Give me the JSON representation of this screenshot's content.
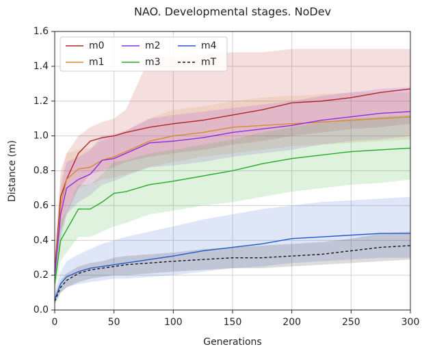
{
  "chart_data": {
    "type": "line",
    "title": "NAO. Developmental stages. NoDev",
    "x_label": "Generations",
    "y_label": "Distance (m)",
    "x": [
      0,
      5,
      10,
      20,
      30,
      40,
      50,
      60,
      80,
      100,
      125,
      150,
      175,
      200,
      225,
      250,
      275,
      300
    ],
    "series": [
      {
        "name": "m0",
        "color": "#b22222",
        "dash": false,
        "values": [
          0.22,
          0.65,
          0.75,
          0.9,
          0.97,
          0.99,
          1.0,
          1.02,
          1.05,
          1.07,
          1.09,
          1.12,
          1.15,
          1.19,
          1.2,
          1.22,
          1.25,
          1.27
        ],
        "lower": [
          0.15,
          0.45,
          0.55,
          0.7,
          0.78,
          0.8,
          0.82,
          0.85,
          0.88,
          0.9,
          0.92,
          0.95,
          0.97,
          1.0,
          1.02,
          1.04,
          1.05,
          1.07
        ],
        "upper": [
          0.3,
          0.8,
          0.9,
          1.0,
          1.05,
          1.08,
          1.1,
          1.15,
          1.45,
          1.45,
          1.47,
          1.48,
          1.48,
          1.5,
          1.5,
          1.5,
          1.5,
          1.5
        ]
      },
      {
        "name": "m1",
        "color": "#d98a2b",
        "dash": false,
        "values": [
          0.2,
          0.6,
          0.75,
          0.81,
          0.82,
          0.86,
          0.88,
          0.91,
          0.97,
          1.0,
          1.02,
          1.05,
          1.06,
          1.07,
          1.08,
          1.09,
          1.1,
          1.11
        ],
        "lower": [
          0.15,
          0.45,
          0.6,
          0.7,
          0.72,
          0.75,
          0.76,
          0.78,
          0.82,
          0.85,
          0.88,
          0.9,
          0.92,
          0.94,
          0.95,
          0.96,
          0.97,
          0.98
        ],
        "upper": [
          0.28,
          0.75,
          0.9,
          0.92,
          0.93,
          0.97,
          1.0,
          1.03,
          1.1,
          1.15,
          1.17,
          1.2,
          1.22,
          1.23,
          1.24,
          1.25,
          1.25,
          1.25
        ]
      },
      {
        "name": "m2",
        "color": "#8a2be2",
        "dash": false,
        "values": [
          0.2,
          0.55,
          0.7,
          0.75,
          0.78,
          0.86,
          0.87,
          0.9,
          0.96,
          0.97,
          0.99,
          1.02,
          1.04,
          1.06,
          1.09,
          1.11,
          1.13,
          1.14
        ],
        "lower": [
          0.15,
          0.4,
          0.55,
          0.62,
          0.66,
          0.72,
          0.74,
          0.77,
          0.82,
          0.83,
          0.85,
          0.88,
          0.9,
          0.92,
          0.95,
          0.97,
          0.98,
          1.0
        ],
        "upper": [
          0.28,
          0.7,
          0.85,
          0.88,
          0.92,
          1.0,
          1.01,
          1.03,
          1.1,
          1.12,
          1.14,
          1.16,
          1.18,
          1.2,
          1.23,
          1.25,
          1.27,
          1.28
        ]
      },
      {
        "name": "m3",
        "color": "#22aa22",
        "dash": false,
        "values": [
          0.15,
          0.4,
          0.46,
          0.58,
          0.58,
          0.62,
          0.67,
          0.68,
          0.72,
          0.74,
          0.77,
          0.8,
          0.84,
          0.87,
          0.89,
          0.91,
          0.92,
          0.93
        ],
        "lower": [
          0.1,
          0.28,
          0.33,
          0.42,
          0.42,
          0.45,
          0.48,
          0.5,
          0.55,
          0.57,
          0.6,
          0.62,
          0.65,
          0.68,
          0.7,
          0.72,
          0.73,
          0.75
        ],
        "upper": [
          0.2,
          0.5,
          0.58,
          0.72,
          0.72,
          0.78,
          0.85,
          0.86,
          0.9,
          0.92,
          0.95,
          0.98,
          1.02,
          1.05,
          1.08,
          1.1,
          1.11,
          1.12
        ]
      },
      {
        "name": "m4",
        "color": "#2255cc",
        "dash": false,
        "values": [
          0.06,
          0.15,
          0.19,
          0.22,
          0.24,
          0.25,
          0.26,
          0.27,
          0.29,
          0.31,
          0.34,
          0.36,
          0.38,
          0.41,
          0.42,
          0.43,
          0.44,
          0.44
        ],
        "lower": [
          0.04,
          0.1,
          0.13,
          0.15,
          0.16,
          0.17,
          0.18,
          0.18,
          0.19,
          0.2,
          0.22,
          0.24,
          0.25,
          0.27,
          0.28,
          0.29,
          0.3,
          0.3
        ],
        "upper": [
          0.1,
          0.22,
          0.28,
          0.32,
          0.35,
          0.38,
          0.4,
          0.42,
          0.45,
          0.48,
          0.52,
          0.55,
          0.58,
          0.6,
          0.62,
          0.63,
          0.64,
          0.65
        ]
      },
      {
        "name": "mT",
        "color": "#111111",
        "dash": true,
        "values": [
          0.05,
          0.13,
          0.17,
          0.21,
          0.23,
          0.24,
          0.25,
          0.26,
          0.27,
          0.28,
          0.29,
          0.3,
          0.3,
          0.31,
          0.32,
          0.34,
          0.36,
          0.37
        ],
        "lower": [
          0.03,
          0.1,
          0.13,
          0.16,
          0.18,
          0.19,
          0.2,
          0.2,
          0.21,
          0.22,
          0.23,
          0.24,
          0.24,
          0.25,
          0.26,
          0.27,
          0.28,
          0.29
        ],
        "upper": [
          0.08,
          0.17,
          0.21,
          0.25,
          0.27,
          0.28,
          0.3,
          0.31,
          0.32,
          0.33,
          0.35,
          0.36,
          0.37,
          0.38,
          0.39,
          0.41,
          0.44,
          0.45
        ]
      }
    ],
    "xlim": [
      0,
      300
    ],
    "xticks": [
      0,
      50,
      100,
      150,
      200,
      250,
      300
    ],
    "ylim": [
      0,
      1.6
    ],
    "yticks": [
      {
        "value": 0,
        "label": "0.0"
      },
      0.2,
      0.4,
      0.6,
      0.8,
      {
        "value": 1,
        "label": "1.0"
      },
      1.2,
      1.4,
      1.6
    ],
    "grid": true,
    "legend": "upper-left"
  }
}
